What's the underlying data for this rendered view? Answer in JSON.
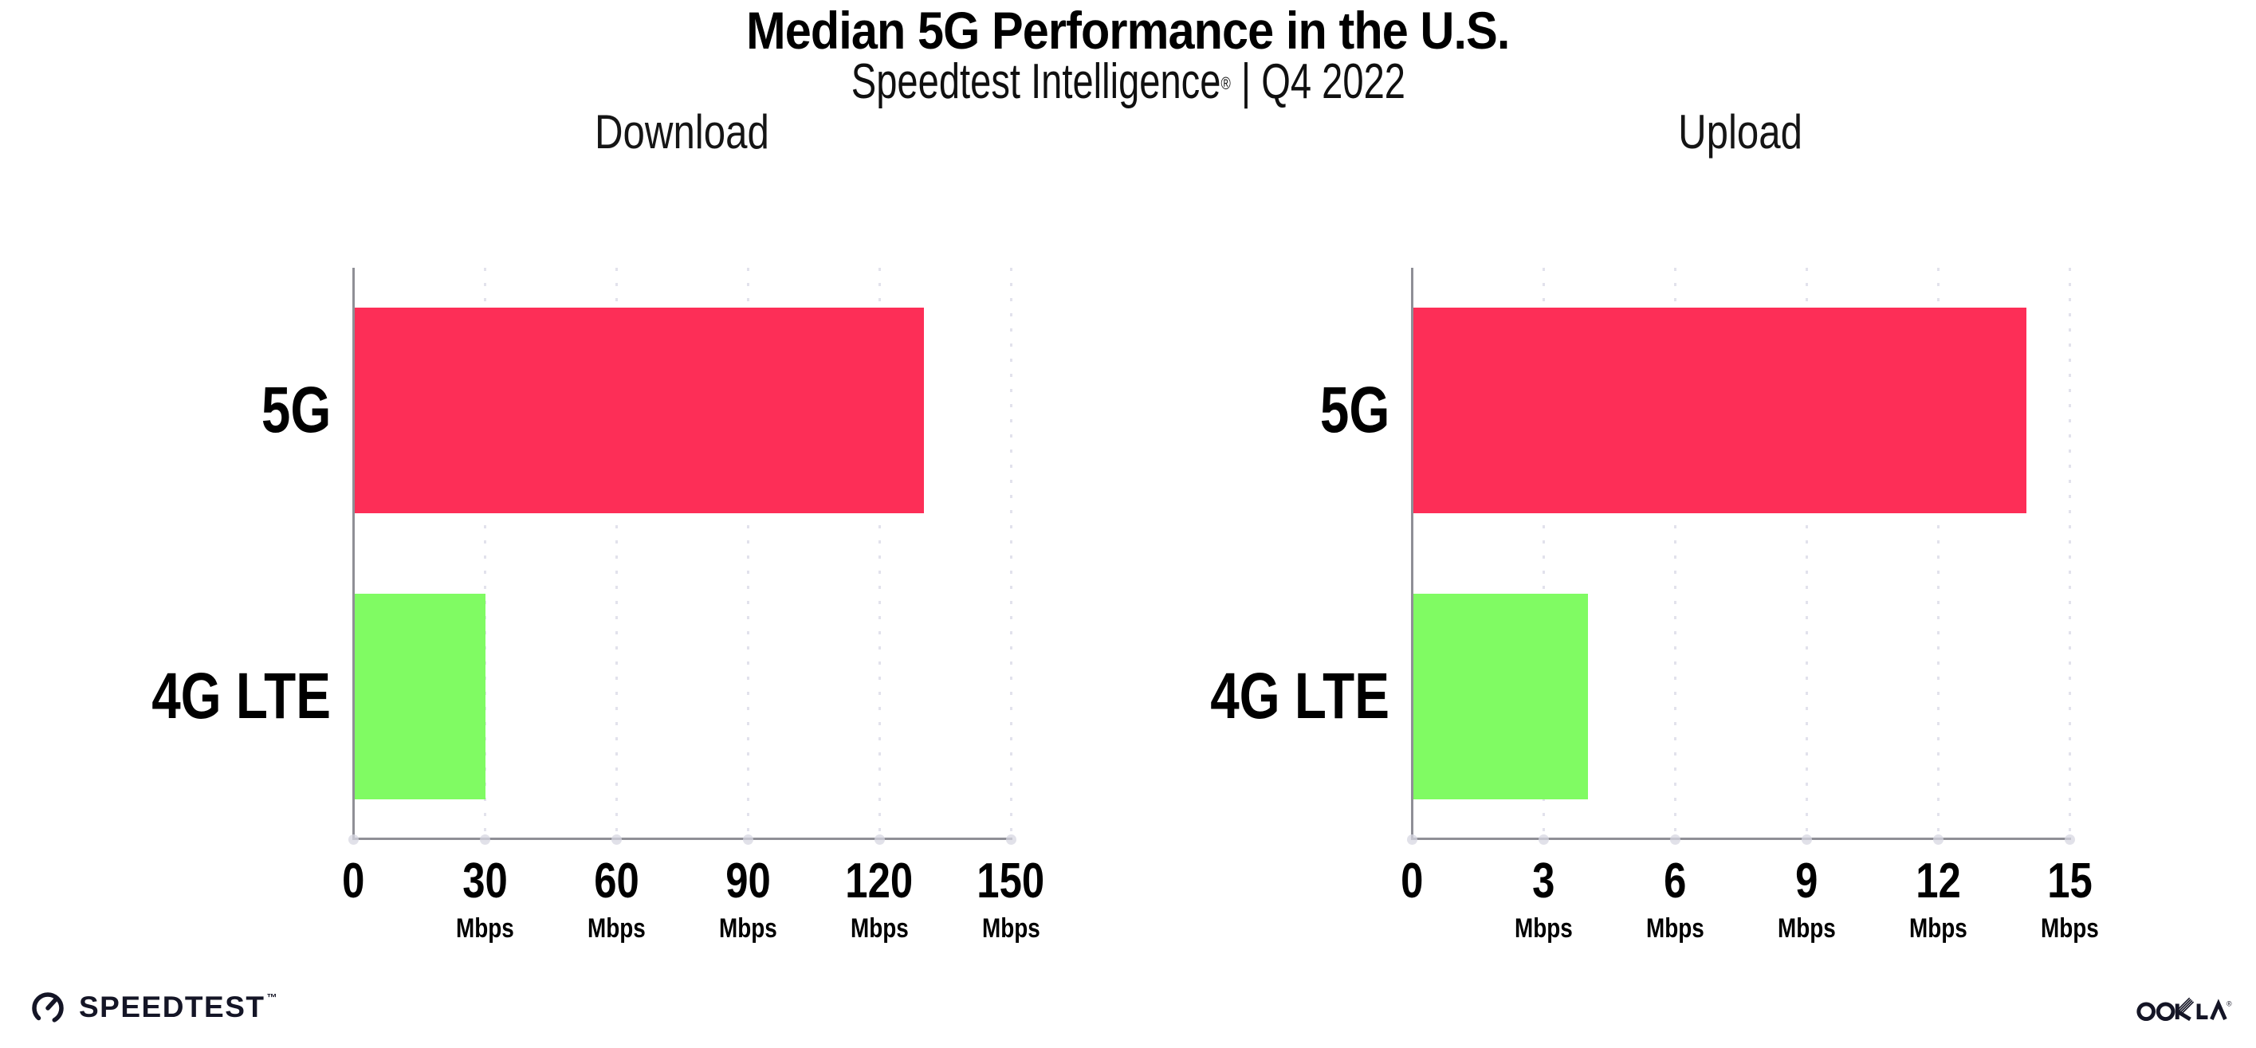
{
  "page": {
    "title": "Median 5G Performance in the U.S.",
    "subtitle_brand": "Speedtest Intelligence",
    "subtitle_reg": "®",
    "subtitle_rest": " | Q4 2022"
  },
  "footer": {
    "speedtest_label": "SPEEDTEST",
    "speedtest_tm": "™",
    "ookla_label": "OOKLA",
    "ookla_reg": "®"
  },
  "colors": {
    "bar_5g": "#fd2e57",
    "bar_4g_lte": "#80fb63",
    "axis": "#8f8f96",
    "gridline": "#e2e2ec",
    "text": "#000000",
    "logo": "#141526"
  },
  "chart_data": [
    {
      "type": "bar",
      "orientation": "horizontal",
      "title": "Download",
      "categories": [
        "5G",
        "4G LTE"
      ],
      "values": [
        130,
        30
      ],
      "unit": "Mbps",
      "xlabel": "",
      "ylabel": "",
      "xlim": [
        0,
        150
      ],
      "xticks": [
        0,
        30,
        60,
        90,
        120,
        150
      ],
      "bar_colors": [
        "#fd2e57",
        "#80fb63"
      ],
      "grid": "dotted-vertical",
      "legend": "none"
    },
    {
      "type": "bar",
      "orientation": "horizontal",
      "title": "Upload",
      "categories": [
        "5G",
        "4G LTE"
      ],
      "values": [
        14,
        4
      ],
      "unit": "Mbps",
      "xlabel": "",
      "ylabel": "",
      "xlim": [
        0,
        15
      ],
      "xticks": [
        0,
        3,
        6,
        9,
        12,
        15
      ],
      "bar_colors": [
        "#fd2e57",
        "#80fb63"
      ],
      "grid": "dotted-vertical",
      "legend": "none"
    }
  ]
}
